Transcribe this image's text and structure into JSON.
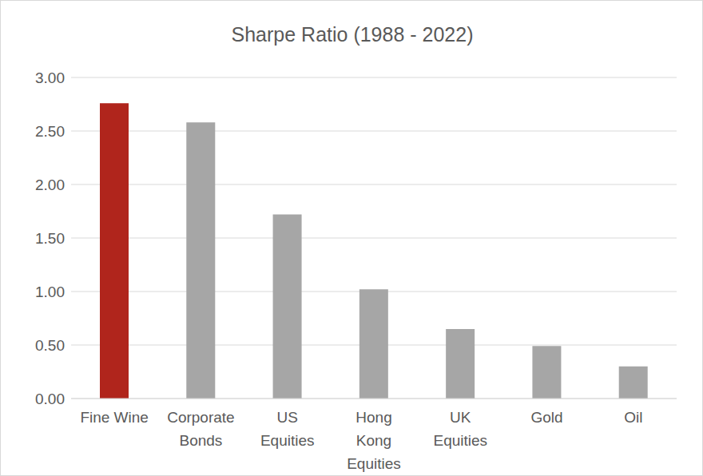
{
  "chart_data": {
    "type": "bar",
    "title": "Sharpe Ratio (1988 - 2022)",
    "categories": [
      "Fine Wine",
      "Corporate Bonds",
      "US Equities",
      "Hong Kong Equities",
      "UK Equities",
      "Gold",
      "Oil"
    ],
    "values": [
      2.76,
      2.58,
      1.72,
      1.02,
      0.65,
      0.49,
      0.3
    ],
    "colors": [
      "#b0251c",
      "#a6a6a6",
      "#a6a6a6",
      "#a6a6a6",
      "#a6a6a6",
      "#a6a6a6",
      "#a6a6a6"
    ],
    "ylim": [
      0,
      3
    ],
    "yticks": [
      {
        "value": 0,
        "label": "0.00"
      },
      {
        "value": 0.5,
        "label": "0.50"
      },
      {
        "value": 1,
        "label": "1.00"
      },
      {
        "value": 1.5,
        "label": "1.50"
      },
      {
        "value": 2,
        "label": "2.00"
      },
      {
        "value": 2.5,
        "label": "2.50"
      },
      {
        "value": 3,
        "label": "3.00"
      }
    ],
    "grid": true
  }
}
